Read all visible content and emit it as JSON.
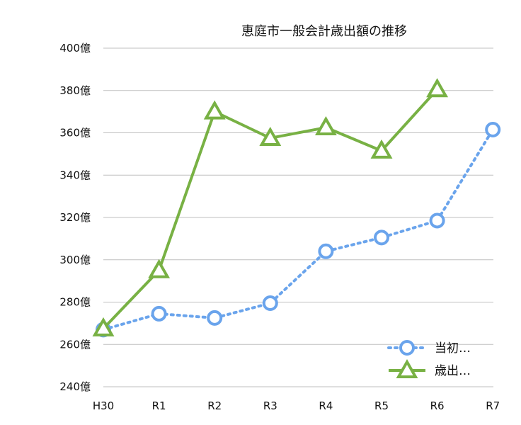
{
  "chart_data": {
    "type": "line",
    "title": "恵庭市一般会計歳出額の推移",
    "categories": [
      "H30",
      "R1",
      "R2",
      "R3",
      "R4",
      "R5",
      "R6",
      "R7"
    ],
    "y_tick_labels": [
      "240億",
      "260億",
      "280億",
      "300億",
      "320億",
      "340億",
      "360億",
      "380億",
      "400億"
    ],
    "ylim": [
      240,
      400
    ],
    "grid": true,
    "legend_position": "bottom-right",
    "series": [
      {
        "name": "当初…",
        "style": "dotted",
        "marker": "circle",
        "color": "#6aa4ec",
        "values": [
          267,
          274.5,
          272.5,
          279.5,
          304,
          310.5,
          318.5,
          361.5
        ]
      },
      {
        "name": "歳出…",
        "style": "solid",
        "marker": "triangle",
        "color": "#78b144",
        "values": [
          267.5,
          295,
          370,
          357.5,
          362.5,
          351.5,
          380.5,
          null
        ]
      }
    ]
  }
}
